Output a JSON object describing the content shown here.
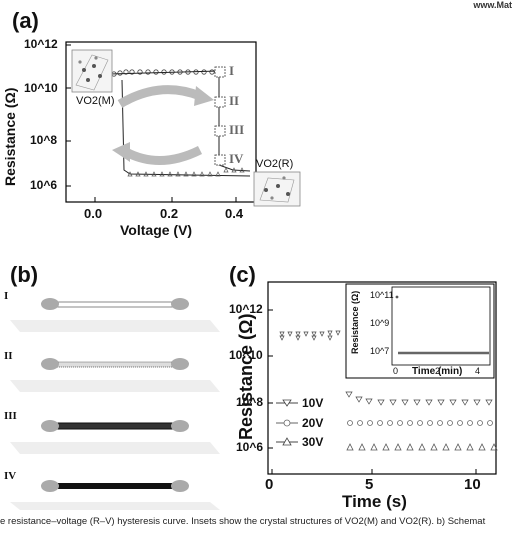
{
  "header": {
    "url": "www.Mat"
  },
  "panel_a": {
    "tag": "(a)",
    "ylabel": "Resistance (Ω)",
    "xlabel": "Voltage (V)",
    "inset_left_label": "VO2(M)",
    "inset_right_label": "VO2(R)",
    "states": [
      "I",
      "II",
      "III",
      "IV"
    ],
    "x_ticks": [
      "0.0",
      "0.2",
      "0.4"
    ],
    "y_ticks": [
      "10^6",
      "10^8",
      "10^10",
      "10^12"
    ]
  },
  "panel_b": {
    "tag": "(b)",
    "rows": [
      "I",
      "II",
      "III",
      "IV"
    ]
  },
  "panel_c": {
    "tag": "(c)",
    "ylabel": "Resistance (Ω)",
    "xlabel": "Time (s)",
    "x_ticks": [
      "0",
      "5",
      "10"
    ],
    "y_ticks": [
      "10^6",
      "10^8",
      "10^10",
      "10^12"
    ],
    "legend": [
      "10V",
      "20V",
      "30V"
    ],
    "inset_ylabel": "Resistance (Ω)",
    "inset_xlabel": "Time (min)",
    "inset_x_ticks": [
      "0",
      "2",
      "4"
    ],
    "inset_y_ticks": [
      "10^7",
      "10^9",
      "10^11"
    ]
  },
  "caption": "e resistance–voltage (R–V) hysteresis curve. Insets show the crystal structures of VO2(M) and VO2(R). b) Schemat",
  "chart_data": [
    {
      "type": "scatter",
      "xlabel": "Voltage (V)",
      "ylabel": "Resistance (Ω)",
      "xlim": [
        -0.1,
        0.5
      ],
      "ylim_log10": [
        5.5,
        12
      ],
      "series": [
        {
          "x": [
            0.03,
            0.08,
            0.15,
            0.2,
            0.25,
            0.3,
            0.34,
            0.35,
            0.35,
            0.35,
            0.36,
            0.4
          ],
          "log10_y": [
            10.3,
            10.3,
            10.3,
            10.3,
            10.3,
            10.3,
            10.3,
            9.5,
            8.5,
            7.5,
            6.5,
            6.3
          ]
        },
        {
          "x": [
            0.4,
            0.35,
            0.3,
            0.25,
            0.2,
            0.15,
            0.1,
            0.08,
            0.07,
            0.07,
            0.07
          ],
          "log10_y": [
            6.2,
            6.2,
            6.25,
            6.3,
            6.35,
            6.4,
            6.45,
            6.5,
            7.5,
            9.0,
            10.2
          ]
        }
      ]
    },
    {
      "type": "scatter",
      "xlabel": "Time (s)",
      "ylabel": "Resistance (Ω)",
      "xlim": [
        0,
        11
      ],
      "ylim_log10": [
        5.3,
        12.5
      ],
      "series": [
        {
          "name": "10V",
          "x_range": [
            0.4,
            3.7
          ],
          "log10_y_before": 10.4,
          "x_after_range": [
            3.7,
            11
          ],
          "log10_y_after": 7.9
        },
        {
          "name": "20V",
          "x_range": [
            3.7,
            11
          ],
          "log10_y": 6.8
        },
        {
          "name": "30V",
          "x_range": [
            3.7,
            11
          ],
          "log10_y": 5.8
        }
      ],
      "inset": {
        "xlabel": "Time (min)",
        "xlim": [
          -0.3,
          5
        ],
        "ylim_log10": [
          6,
          11.5
        ],
        "points": [
          [
            0,
            11
          ],
          [
            0.2,
            7.2
          ],
          [
            5,
            7.2
          ]
        ]
      }
    }
  ]
}
